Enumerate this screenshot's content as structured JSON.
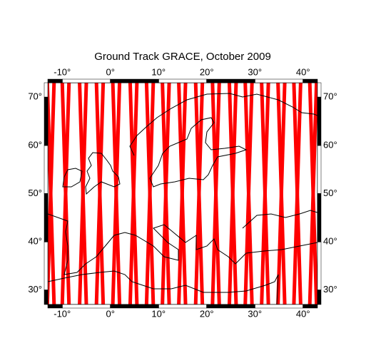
{
  "title": "Ground Track GRACE, October 2009",
  "map": {
    "xlim": [
      -13,
      43
    ],
    "ylim": [
      27,
      73
    ],
    "xticks": [
      {
        "value": -10,
        "label": "-10°"
      },
      {
        "value": 0,
        "label": "0°"
      },
      {
        "value": 10,
        "label": "10°"
      },
      {
        "value": 20,
        "label": "20°"
      },
      {
        "value": 30,
        "label": "30°"
      },
      {
        "value": 40,
        "label": "40°"
      }
    ],
    "yticks": [
      {
        "value": 30,
        "label": "30°"
      },
      {
        "value": 40,
        "label": "40°"
      },
      {
        "value": 50,
        "label": "50°"
      },
      {
        "value": 60,
        "label": "60°"
      },
      {
        "value": 70,
        "label": "70°"
      }
    ],
    "frame_step": 10
  },
  "tracks": {
    "color": "#ff0000",
    "lat": [
      27,
      73
    ],
    "lon": [
      [
        -13.1,
        -11.7
      ],
      [
        -11.7,
        -13.1
      ],
      [
        -10,
        -8.6
      ],
      [
        -8.6,
        -10
      ],
      [
        -6.4,
        -5
      ],
      [
        -5,
        -6.4
      ],
      [
        -2.9,
        -1.5
      ],
      [
        -1.5,
        -2.9
      ],
      [
        0.5,
        1.9
      ],
      [
        1.9,
        0.5
      ],
      [
        4.1,
        5.5
      ],
      [
        5.5,
        4.1
      ],
      [
        7.5,
        8.9
      ],
      [
        8.9,
        7.5
      ],
      [
        10.8,
        12.2
      ],
      [
        12.2,
        10.8
      ],
      [
        14.2,
        15.6
      ],
      [
        15.6,
        14.2
      ],
      [
        17.7,
        19.1
      ],
      [
        19.1,
        17.7
      ],
      [
        21.2,
        22.6
      ],
      [
        22.6,
        21.2
      ],
      [
        24.7,
        26.1
      ],
      [
        26.1,
        24.7
      ],
      [
        28,
        29.4
      ],
      [
        29.4,
        28
      ],
      [
        31.4,
        32.8
      ],
      [
        32.8,
        31.4
      ],
      [
        34.8,
        36.2
      ],
      [
        36.2,
        34.8
      ],
      [
        38.1,
        39.5
      ],
      [
        39.5,
        38.1
      ],
      [
        41.4,
        42.8
      ],
      [
        42.8,
        41.4
      ]
    ]
  }
}
